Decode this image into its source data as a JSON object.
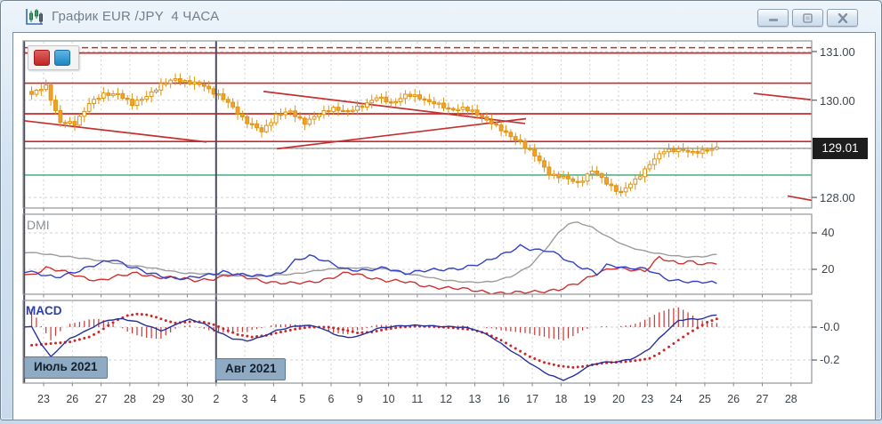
{
  "window": {
    "title": "График EUR /JPY  4 ЧАСА",
    "buttons": [
      "minimize",
      "maximize",
      "close"
    ]
  },
  "legend_buttons": [
    {
      "name": "red-series-button",
      "color": "#C82828"
    },
    {
      "name": "blue-series-button",
      "color": "#2F9BD8"
    }
  ],
  "panel_labels": {
    "dmi": "DMI",
    "macd": "MACD"
  },
  "months": [
    {
      "label": "Июль 2021"
    },
    {
      "label": "Авг 2021"
    }
  ],
  "axes": {
    "price": {
      "labels": [
        "131.00",
        "130.00",
        "128.00"
      ],
      "values": [
        131.0,
        130.0,
        128.0
      ],
      "current_label": "129.01"
    },
    "dmi": {
      "labels": [
        "40",
        "20"
      ],
      "values": [
        40,
        20
      ]
    },
    "macd": {
      "labels": [
        "-0.0",
        "-0.2"
      ],
      "values": [
        0,
        -0.2
      ]
    },
    "time": {
      "days": [
        "23",
        "26",
        "27",
        "28",
        "29",
        "30",
        "2",
        "3",
        "4",
        "5",
        "6",
        "9",
        "10",
        "11",
        "12",
        "13",
        "16",
        "17",
        "18",
        "19",
        "20",
        "23",
        "24",
        "25",
        "26",
        "27",
        "28"
      ]
    }
  },
  "chart_data": {
    "type": "candlestick+indicators",
    "instrument": "EUR/JPY",
    "timeframe": "4 hours",
    "n_candles": 144,
    "candles_per_day": 6,
    "price_ylim": [
      127.78,
      131.22
    ],
    "price_gridlines": [
      131.0,
      130.0,
      129.0,
      128.0
    ],
    "current_price": 129.01,
    "close_anchors": [
      [
        0,
        130.12
      ],
      [
        3,
        130.28
      ],
      [
        6,
        129.55
      ],
      [
        9,
        129.5
      ],
      [
        12,
        129.95
      ],
      [
        15,
        130.1
      ],
      [
        18,
        130.15
      ],
      [
        21,
        129.9
      ],
      [
        24,
        130.1
      ],
      [
        27,
        130.3
      ],
      [
        30,
        130.45
      ],
      [
        33,
        130.35
      ],
      [
        36,
        130.3
      ],
      [
        39,
        130.1
      ],
      [
        42,
        129.85
      ],
      [
        45,
        129.55
      ],
      [
        48,
        129.35
      ],
      [
        51,
        129.7
      ],
      [
        54,
        129.75
      ],
      [
        57,
        129.55
      ],
      [
        60,
        129.7
      ],
      [
        63,
        129.85
      ],
      [
        66,
        129.75
      ],
      [
        69,
        129.9
      ],
      [
        72,
        130.05
      ],
      [
        75,
        129.95
      ],
      [
        78,
        130.1
      ],
      [
        81,
        130.05
      ],
      [
        84,
        129.95
      ],
      [
        87,
        129.8
      ],
      [
        90,
        129.85
      ],
      [
        93,
        129.7
      ],
      [
        96,
        129.55
      ],
      [
        99,
        129.3
      ],
      [
        102,
        129.15
      ],
      [
        105,
        128.85
      ],
      [
        108,
        128.5
      ],
      [
        111,
        128.4
      ],
      [
        114,
        128.3
      ],
      [
        117,
        128.55
      ],
      [
        120,
        128.3
      ],
      [
        123,
        128.1
      ],
      [
        126,
        128.35
      ],
      [
        129,
        128.7
      ],
      [
        132,
        128.95
      ],
      [
        135,
        129.0
      ],
      [
        138,
        128.9
      ],
      [
        141,
        129.0
      ],
      [
        143,
        129.01
      ]
    ],
    "levels": {
      "red_solid": [
        130.97,
        130.35,
        129.72,
        129.15
      ],
      "red_dashed": [
        131.08
      ],
      "green": [
        128.46
      ],
      "gray_current": [
        129.01
      ]
    },
    "trendlines": [
      [
        -1.8,
        129.58,
        36.5,
        129.14
      ],
      [
        48.4,
        130.18,
        103.0,
        129.52
      ],
      [
        51.2,
        129.0,
        103.2,
        129.62
      ],
      [
        150.7,
        130.14,
        162.6,
        130.01
      ],
      [
        157.8,
        128.03,
        162.8,
        127.94
      ]
    ],
    "dmi": {
      "ylim_ticks": [
        40,
        20
      ],
      "adx_anchors": [
        [
          0,
          29
        ],
        [
          8,
          27
        ],
        [
          16,
          24
        ],
        [
          24,
          21
        ],
        [
          32,
          18
        ],
        [
          40,
          17
        ],
        [
          48,
          16
        ],
        [
          56,
          18
        ],
        [
          62,
          20
        ],
        [
          68,
          21
        ],
        [
          74,
          20
        ],
        [
          80,
          17
        ],
        [
          86,
          14
        ],
        [
          92,
          13
        ],
        [
          96,
          13
        ],
        [
          100,
          16
        ],
        [
          104,
          22
        ],
        [
          107,
          30
        ],
        [
          110,
          40
        ],
        [
          112,
          45
        ],
        [
          114,
          46
        ],
        [
          117,
          43
        ],
        [
          120,
          38
        ],
        [
          124,
          33
        ],
        [
          128,
          30
        ],
        [
          132,
          28
        ],
        [
          136,
          27
        ],
        [
          140,
          27
        ],
        [
          143,
          28
        ]
      ],
      "plus_di_anchors": [
        [
          0,
          18
        ],
        [
          5,
          16
        ],
        [
          10,
          19
        ],
        [
          14,
          23
        ],
        [
          17,
          26
        ],
        [
          20,
          22
        ],
        [
          24,
          18
        ],
        [
          28,
          16
        ],
        [
          32,
          15
        ],
        [
          36,
          16
        ],
        [
          40,
          19
        ],
        [
          44,
          17
        ],
        [
          48,
          16
        ],
        [
          52,
          18
        ],
        [
          55,
          25
        ],
        [
          58,
          27
        ],
        [
          62,
          24
        ],
        [
          66,
          20
        ],
        [
          70,
          19
        ],
        [
          74,
          21
        ],
        [
          78,
          18
        ],
        [
          82,
          19
        ],
        [
          86,
          20
        ],
        [
          90,
          21
        ],
        [
          94,
          23
        ],
        [
          98,
          28
        ],
        [
          102,
          33
        ],
        [
          104,
          31
        ],
        [
          106,
          30
        ],
        [
          108,
          30
        ],
        [
          110,
          28
        ],
        [
          112,
          25
        ],
        [
          114,
          22
        ],
        [
          116,
          20
        ],
        [
          118,
          17
        ],
        [
          120,
          22
        ],
        [
          122,
          22
        ],
        [
          124,
          21
        ],
        [
          126,
          21
        ],
        [
          128,
          20
        ],
        [
          130,
          18
        ],
        [
          132,
          15
        ],
        [
          134,
          14
        ],
        [
          136,
          14
        ],
        [
          138,
          13
        ],
        [
          140,
          13
        ],
        [
          143,
          12
        ]
      ],
      "minus_di_anchors": [
        [
          0,
          17
        ],
        [
          3,
          21
        ],
        [
          6,
          19
        ],
        [
          10,
          16
        ],
        [
          14,
          14
        ],
        [
          18,
          16
        ],
        [
          22,
          18
        ],
        [
          26,
          16
        ],
        [
          30,
          15
        ],
        [
          34,
          14
        ],
        [
          38,
          15
        ],
        [
          42,
          17
        ],
        [
          46,
          15
        ],
        [
          50,
          13
        ],
        [
          54,
          12
        ],
        [
          58,
          13
        ],
        [
          62,
          15
        ],
        [
          66,
          18
        ],
        [
          70,
          16
        ],
        [
          74,
          14
        ],
        [
          78,
          13
        ],
        [
          82,
          11
        ],
        [
          86,
          10
        ],
        [
          90,
          9
        ],
        [
          94,
          8
        ],
        [
          98,
          7
        ],
        [
          102,
          7
        ],
        [
          106,
          8
        ],
        [
          110,
          9
        ],
        [
          114,
          12
        ],
        [
          118,
          18
        ],
        [
          121,
          21
        ],
        [
          124,
          20
        ],
        [
          126,
          19
        ],
        [
          128,
          19
        ],
        [
          131,
          27
        ],
        [
          133,
          25
        ],
        [
          135,
          23
        ],
        [
          137,
          24
        ],
        [
          139,
          23
        ],
        [
          141,
          23
        ],
        [
          143,
          24
        ]
      ]
    },
    "macd": {
      "ylim_ticks": [
        0,
        -0.2
      ],
      "macd_anchors": [
        [
          0,
          0.0
        ],
        [
          2,
          -0.1
        ],
        [
          4,
          -0.18
        ],
        [
          6,
          -0.12
        ],
        [
          8,
          -0.07
        ],
        [
          11,
          -0.03
        ],
        [
          14,
          0.02
        ],
        [
          16,
          0.045
        ],
        [
          19,
          0.05
        ],
        [
          22,
          0.03
        ],
        [
          25,
          0.0
        ],
        [
          27,
          -0.02
        ],
        [
          29,
          0.0
        ],
        [
          31,
          0.03
        ],
        [
          33,
          0.045
        ],
        [
          36,
          0.02
        ],
        [
          39,
          -0.03
        ],
        [
          42,
          -0.07
        ],
        [
          45,
          -0.085
        ],
        [
          48,
          -0.06
        ],
        [
          51,
          -0.02
        ],
        [
          54,
          0.0
        ],
        [
          57,
          0.01
        ],
        [
          60,
          0.0
        ],
        [
          63,
          -0.04
        ],
        [
          66,
          -0.065
        ],
        [
          69,
          -0.05
        ],
        [
          72,
          -0.01
        ],
        [
          75,
          0.005
        ],
        [
          78,
          0.01
        ],
        [
          82,
          0.008
        ],
        [
          86,
          0.005
        ],
        [
          90,
          0.0
        ],
        [
          93,
          -0.02
        ],
        [
          96,
          -0.06
        ],
        [
          99,
          -0.12
        ],
        [
          102,
          -0.18
        ],
        [
          105,
          -0.24
        ],
        [
          108,
          -0.29
        ],
        [
          111,
          -0.32
        ],
        [
          113,
          -0.3
        ],
        [
          115,
          -0.26
        ],
        [
          117,
          -0.23
        ],
        [
          119,
          -0.215
        ],
        [
          122,
          -0.21
        ],
        [
          125,
          -0.195
        ],
        [
          127,
          -0.17
        ],
        [
          129,
          -0.13
        ],
        [
          131,
          -0.07
        ],
        [
          133,
          -0.01
        ],
        [
          135,
          0.04
        ],
        [
          137,
          0.05
        ],
        [
          139,
          0.045
        ],
        [
          141,
          0.06
        ],
        [
          143,
          0.075
        ]
      ],
      "signal_anchors": [
        [
          0,
          -0.11
        ],
        [
          4,
          -0.1
        ],
        [
          8,
          -0.09
        ],
        [
          12,
          -0.06
        ],
        [
          14,
          -0.03
        ],
        [
          16,
          0.01
        ],
        [
          18,
          0.045
        ],
        [
          20,
          0.07
        ],
        [
          22,
          0.08
        ],
        [
          24,
          0.075
        ],
        [
          26,
          0.06
        ],
        [
          28,
          0.04
        ],
        [
          30,
          0.025
        ],
        [
          32,
          0.03
        ],
        [
          34,
          0.035
        ],
        [
          36,
          0.03
        ],
        [
          38,
          0.015
        ],
        [
          40,
          -0.01
        ],
        [
          43,
          -0.045
        ],
        [
          46,
          -0.06
        ],
        [
          49,
          -0.05
        ],
        [
          52,
          -0.03
        ],
        [
          55,
          -0.012
        ],
        [
          58,
          0.0
        ],
        [
          62,
          0.0
        ],
        [
          65,
          -0.015
        ],
        [
          68,
          -0.035
        ],
        [
          71,
          -0.03
        ],
        [
          74,
          -0.012
        ],
        [
          77,
          0.0
        ],
        [
          80,
          0.005
        ],
        [
          84,
          0.003
        ],
        [
          88,
          -0.005
        ],
        [
          92,
          -0.015
        ],
        [
          95,
          -0.04
        ],
        [
          98,
          -0.08
        ],
        [
          101,
          -0.13
        ],
        [
          104,
          -0.18
        ],
        [
          107,
          -0.215
        ],
        [
          110,
          -0.235
        ],
        [
          113,
          -0.245
        ],
        [
          115,
          -0.24
        ],
        [
          117,
          -0.23
        ],
        [
          119,
          -0.22
        ],
        [
          121,
          -0.215
        ],
        [
          124,
          -0.21
        ],
        [
          127,
          -0.2
        ],
        [
          129,
          -0.19
        ],
        [
          131,
          -0.16
        ],
        [
          133,
          -0.12
        ],
        [
          135,
          -0.08
        ],
        [
          137,
          -0.04
        ],
        [
          139,
          -0.005
        ],
        [
          141,
          0.03
        ],
        [
          143,
          0.05
        ]
      ]
    },
    "colors": {
      "candle": "#F0A32A",
      "candle_border": "#E0920F",
      "level_red": "#CC2A2A",
      "trend_red": "#C43030",
      "green_line": "#3BA273",
      "current_gray": "#909090",
      "adx": "#9C9C9C",
      "plus_di": "#3340C8",
      "minus_di": "#D03030",
      "macd_line": "#26309B",
      "signal": "#CC2828",
      "hist": "#CC3333",
      "grid": "#D2D2D2",
      "month_line": "#4E4A60",
      "panel_border": "#8F959B"
    }
  }
}
